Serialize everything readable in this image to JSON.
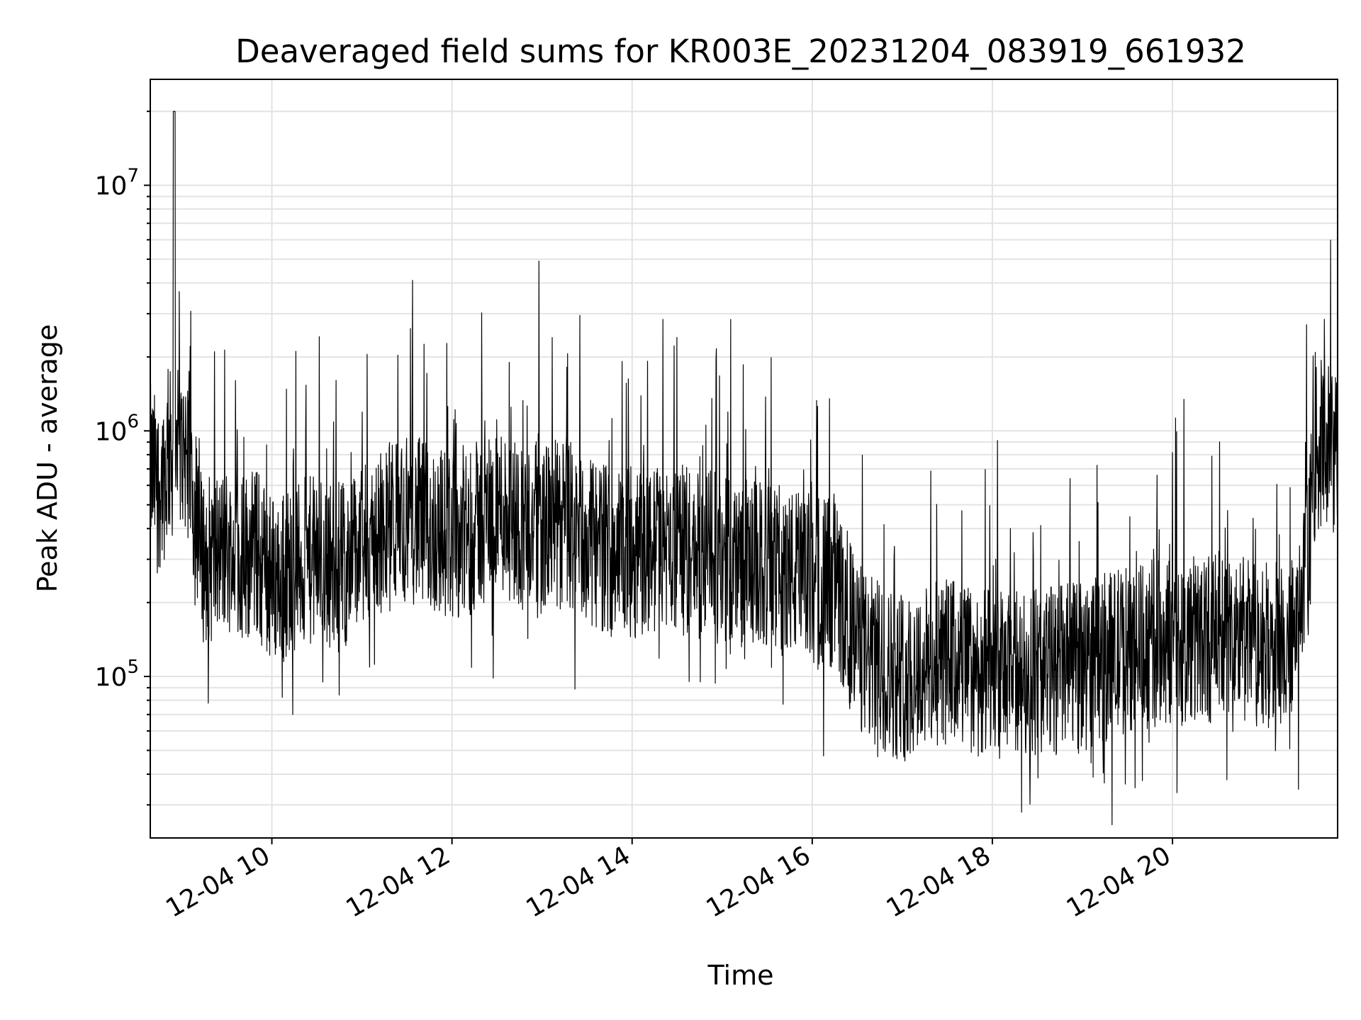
{
  "chart_data": {
    "type": "line",
    "title": "Deaveraged field sums for KR003E_20231204_083919_661932",
    "xlabel": "Time",
    "ylabel": "Peak ADU - average",
    "yscale": "log",
    "ylim": [
      22000,
      27000000
    ],
    "xlim": [
      "2023-12-04 08:39",
      "2023-12-04 21:50"
    ],
    "grid": true,
    "line_color": "#000000",
    "x_ticks": [
      {
        "hour": 10,
        "label": "12-04 10"
      },
      {
        "hour": 12,
        "label": "12-04 12"
      },
      {
        "hour": 14,
        "label": "12-04 14"
      },
      {
        "hour": 16,
        "label": "12-04 16"
      },
      {
        "hour": 18,
        "label": "12-04 18"
      },
      {
        "hour": 20,
        "label": "12-04 20"
      }
    ],
    "y_ticks": [
      {
        "value": 100000,
        "base": "10",
        "exp": "5"
      },
      {
        "value": 1000000,
        "base": "10",
        "exp": "6"
      },
      {
        "value": 10000000,
        "base": "10",
        "exp": "7"
      }
    ],
    "series": [
      {
        "x": [
          "08:39",
          "08:45",
          "08:50",
          "08:55",
          "09:00",
          "09:05",
          "09:10",
          "09:15",
          "09:20",
          "09:30",
          "09:40",
          "09:50",
          "10:00",
          "10:15",
          "10:30",
          "10:45",
          "11:00",
          "11:15",
          "11:30",
          "11:45",
          "12:00",
          "12:15",
          "12:30",
          "12:45",
          "13:00",
          "13:15",
          "13:30",
          "14:00",
          "14:30",
          "15:00",
          "15:30",
          "16:00",
          "16:15",
          "16:25",
          "16:35",
          "16:45",
          "17:00",
          "17:30",
          "18:00",
          "18:30",
          "19:00",
          "19:30",
          "20:00",
          "20:30",
          "21:00",
          "21:15",
          "21:25",
          "21:30",
          "21:35",
          "21:40",
          "21:45",
          "21:50"
        ],
        "y": [
          700000,
          600000,
          700000,
          20000000,
          900000,
          800000,
          350000,
          300000,
          300000,
          330000,
          310000,
          320000,
          250000,
          280000,
          300000,
          280000,
          320000,
          400000,
          450000,
          400000,
          380000,
          400000,
          500000,
          420000,
          400000,
          420000,
          350000,
          320000,
          330000,
          300000,
          280000,
          250000,
          240000,
          160000,
          120000,
          110000,
          100000,
          115000,
          100000,
          105000,
          110000,
          130000,
          140000,
          145000,
          135000,
          130000,
          160000,
          300000,
          800000,
          900000,
          850000,
          800000
        ]
      }
    ]
  }
}
